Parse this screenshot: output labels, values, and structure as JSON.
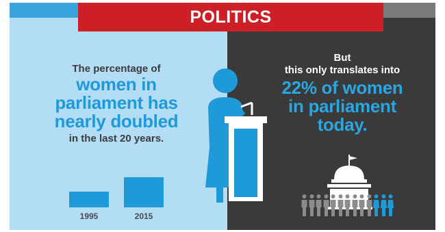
{
  "banner": {
    "title": "POLITICS"
  },
  "left": {
    "line1": "The percentage of",
    "line2": "women in",
    "line3": "parliament has",
    "line4": "nearly doubled",
    "line5": "in the last 20 years."
  },
  "right": {
    "line1": "But",
    "line2": "this only translates into",
    "line3": "22% of women",
    "line4": "in parliament",
    "line5": "today."
  },
  "chart_data": {
    "type": "bar",
    "categories": [
      "1995",
      "2015"
    ],
    "values": [
      11.3,
      22
    ],
    "title": "",
    "xlabel": "",
    "ylabel": ""
  },
  "colors": {
    "accent_blue": "#1f9ad8",
    "banner_red": "#cc2026",
    "dark_panel": "#3a3a3a",
    "light_panel": "#b3dcf5",
    "gray_people": "#8c8c8c"
  },
  "icons": {
    "speaker": "woman-speaker-icon",
    "podium": "podium-icon",
    "building": "parliament-building-icon",
    "people": "people-row-icon"
  },
  "people": {
    "gray_count": 10,
    "blue_count": 3
  }
}
